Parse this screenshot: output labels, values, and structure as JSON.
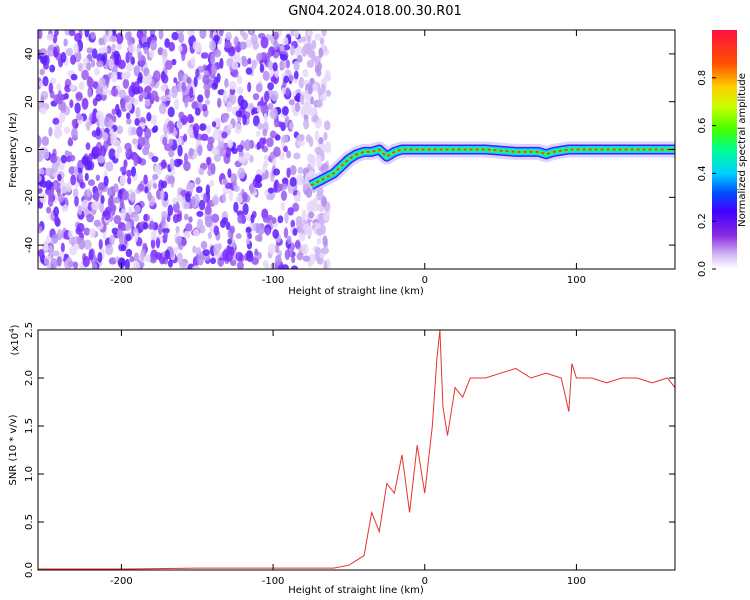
{
  "title": "GN04.2024.018.00.30.R01",
  "chart_data": [
    {
      "type": "heatmap",
      "xlabel": "Height of straight line (km)",
      "ylabel": "Frequency (Hz)",
      "xlim": [
        -255,
        165
      ],
      "ylim": [
        -50,
        50
      ],
      "xticks": [
        -200,
        -100,
        0,
        100
      ],
      "yticks": [
        -40,
        -20,
        0,
        20,
        40
      ],
      "noise_region_x": [
        -255,
        -70
      ],
      "signal_ridge": {
        "x": [
          -75,
          -60,
          -50,
          -45,
          -40,
          -35,
          -30,
          -25,
          -20,
          -15,
          -10,
          0,
          20,
          40,
          60,
          75,
          80,
          85,
          95,
          110,
          130,
          165
        ],
        "y": [
          -15,
          -10,
          -4,
          -2,
          -1,
          -1,
          0,
          -3,
          -1,
          0,
          0,
          0,
          0,
          0,
          -1,
          -1,
          -2,
          -1,
          0,
          0,
          0,
          0
        ]
      },
      "colorbar": {
        "label": "Normalized spectral amplitude",
        "ticks": [
          0.0,
          0.2,
          0.4,
          0.6,
          0.8
        ],
        "range": [
          0,
          1
        ],
        "colors": [
          "#ffffff",
          "#d4b8f5",
          "#8a2be2",
          "#4000ff",
          "#0050ff",
          "#00d0ff",
          "#00ff90",
          "#40ff00",
          "#c8ff00",
          "#ffd000",
          "#ff5000",
          "#ff1040"
        ]
      }
    },
    {
      "type": "line",
      "xlabel": "Height of straight line (km)",
      "ylabel": "SNR (10 * v/v)",
      "yexponent_label": "(x10^4)",
      "xlim": [
        -255,
        165
      ],
      "ylim": [
        0.0,
        2.5
      ],
      "xticks": [
        -200,
        -100,
        0,
        100
      ],
      "yticks": [
        0.0,
        0.5,
        1.0,
        1.5,
        2.0,
        2.5
      ],
      "series": [
        {
          "color": "#e8322a",
          "x": [
            -255,
            -200,
            -150,
            -100,
            -60,
            -50,
            -45,
            -40,
            -35,
            -30,
            -25,
            -20,
            -15,
            -10,
            -5,
            0,
            5,
            8,
            10,
            12,
            15,
            20,
            25,
            30,
            40,
            50,
            60,
            70,
            80,
            90,
            95,
            97,
            100,
            110,
            120,
            130,
            140,
            150,
            160,
            165
          ],
          "y": [
            0.01,
            0.01,
            0.02,
            0.02,
            0.02,
            0.05,
            0.1,
            0.15,
            0.6,
            0.4,
            0.9,
            0.8,
            1.2,
            0.6,
            1.3,
            0.8,
            1.5,
            2.2,
            2.5,
            1.7,
            1.4,
            1.9,
            1.8,
            2.0,
            2.0,
            2.05,
            2.1,
            2.0,
            2.05,
            2.0,
            1.65,
            2.15,
            2.0,
            2.0,
            1.95,
            2.0,
            2.0,
            1.95,
            2.0,
            1.9
          ]
        }
      ]
    }
  ]
}
